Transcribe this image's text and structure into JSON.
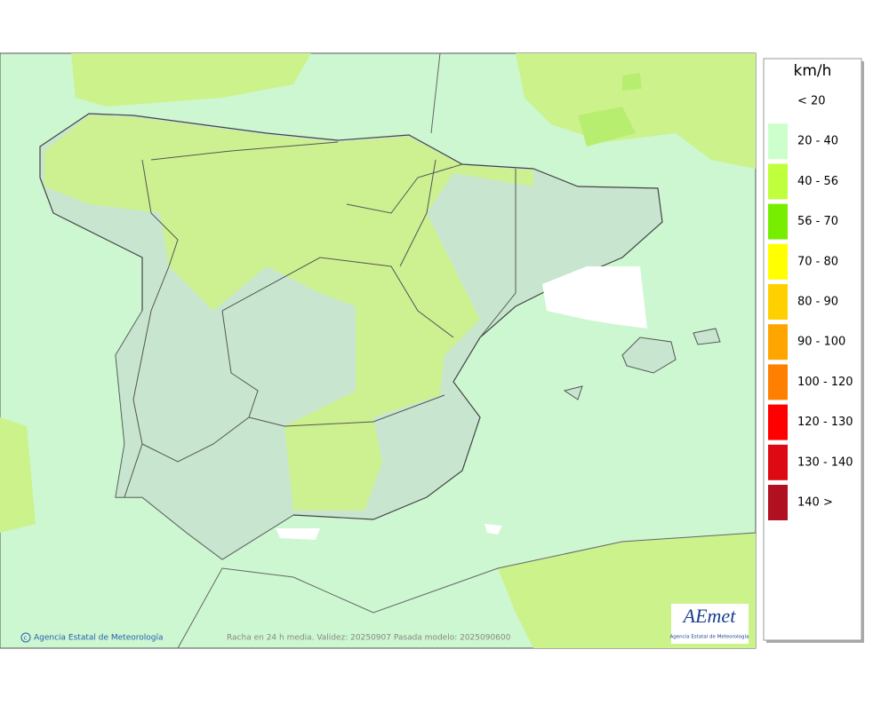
{
  "legend": {
    "title": "km/h",
    "items": [
      {
        "label": "< 20",
        "color": "#ffffff"
      },
      {
        "label": "20 - 40",
        "color": "#ccffcc"
      },
      {
        "label": "40 - 56",
        "color": "#c0ff3c"
      },
      {
        "label": "56 - 70",
        "color": "#77ee00"
      },
      {
        "label": "70 - 80",
        "color": "#ffff00"
      },
      {
        "label": "80 - 90",
        "color": "#ffd000"
      },
      {
        "label": "90 - 100",
        "color": "#ffa500"
      },
      {
        "label": "100 - 120",
        "color": "#ff8000"
      },
      {
        "label": "120 - 130",
        "color": "#ff0000"
      },
      {
        "label": "130 - 140",
        "color": "#dd0a14"
      },
      {
        "label": "140 >",
        "color": "#b01020"
      }
    ]
  },
  "footer": {
    "credit": "Agencia Estatal de Meteorología",
    "caption": "Racha en 24 h media. Validez: 20250907 Pasada modelo: 2025090600"
  },
  "logo": {
    "name": "AEmet",
    "subtitle": "Agencia Estatal de Meteorología"
  }
}
